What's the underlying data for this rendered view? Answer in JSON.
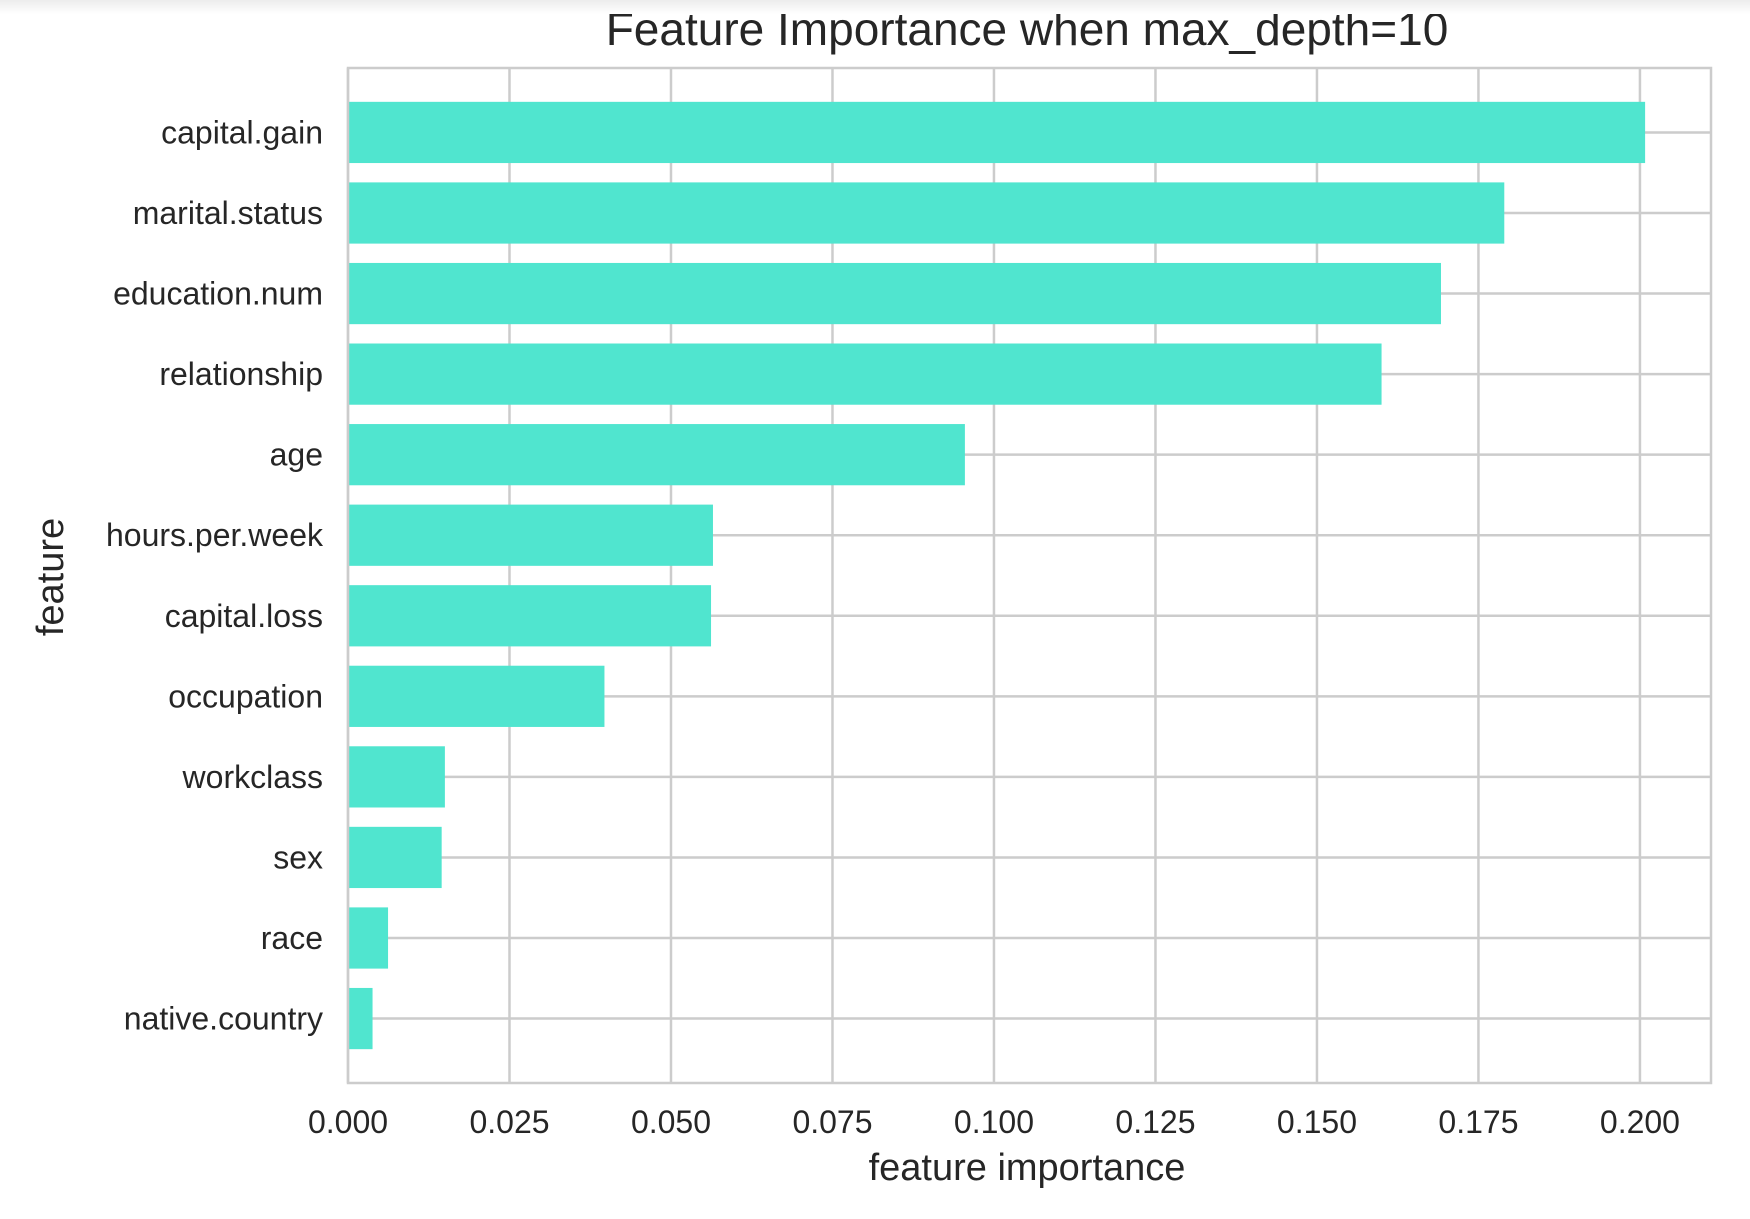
{
  "chart_data": {
    "type": "bar",
    "orientation": "horizontal",
    "title": "Feature Importance when max_depth=10",
    "xlabel": "feature importance",
    "ylabel": "feature",
    "categories": [
      "capital.gain",
      "marital.status",
      "education.num",
      "relationship",
      "age",
      "hours.per.week",
      "capital.loss",
      "occupation",
      "workclass",
      "sex",
      "race",
      "native.country"
    ],
    "values": [
      0.2008,
      0.179,
      0.1692,
      0.16,
      0.0955,
      0.0565,
      0.0562,
      0.0397,
      0.015,
      0.0145,
      0.0062,
      0.0038
    ],
    "xlim": [
      0,
      0.211
    ],
    "xticks": [
      0.0,
      0.025,
      0.05,
      0.075,
      0.1,
      0.125,
      0.15,
      0.175,
      0.2
    ],
    "xtick_labels": [
      "0.000",
      "0.025",
      "0.050",
      "0.075",
      "0.100",
      "0.125",
      "0.150",
      "0.175",
      "0.200"
    ],
    "grid": true,
    "bar_color": "#50e5cf",
    "grid_color": "#cccccc",
    "spine_color": "#cccccc"
  }
}
